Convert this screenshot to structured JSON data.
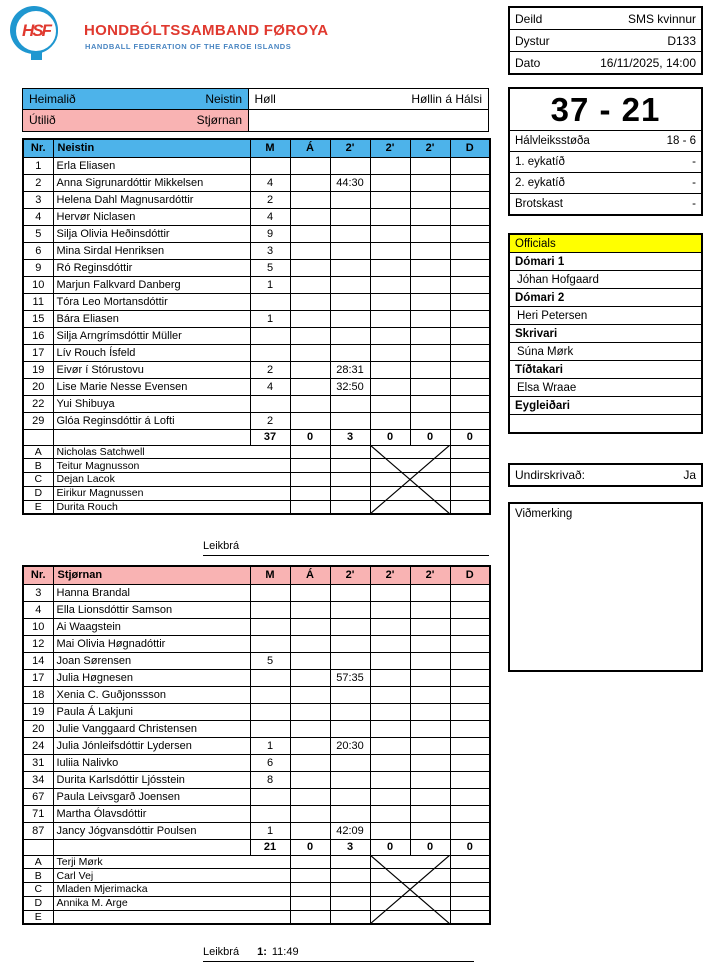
{
  "header": {
    "logo_text": "HSF",
    "org_name": "HONDBÓLTSSAMBAND FØROYA",
    "org_subtitle": "HANDBALL FEDERATION OF THE FAROE ISLANDS"
  },
  "match_info": {
    "rows": [
      {
        "label": "Deild",
        "value": "SMS kvinnur"
      },
      {
        "label": "Dystur",
        "value": "D133"
      },
      {
        "label": "Dato",
        "value": "16/11/2025, 14:00"
      }
    ]
  },
  "venue": {
    "home_label": "Heimalið",
    "home_team": "Neistin",
    "hall_label": "Høll",
    "hall_value": "Høllin á Hálsi",
    "away_label": "Útilið",
    "away_team": "Stjørnan"
  },
  "score": {
    "final": "37 - 21",
    "rows": [
      {
        "label": "Hálvleiksstøða",
        "value": "18 - 6"
      },
      {
        "label": "1. eykatíð",
        "value": "-"
      },
      {
        "label": "2. eykatíð",
        "value": "-"
      },
      {
        "label": "Brotskast",
        "value": "-"
      }
    ]
  },
  "officials": {
    "title": "Officials",
    "list": [
      {
        "role": "Dómari 1",
        "name": "Jóhan Hofgaard"
      },
      {
        "role": "Dómari 2",
        "name": "Heri Petersen"
      },
      {
        "role": "Skrivari",
        "name": "Súna Mørk"
      },
      {
        "role": "Tíðtakari",
        "name": "Elsa Wraae"
      },
      {
        "role": "Eygleiðari",
        "name": ""
      }
    ]
  },
  "signed": {
    "label": "Undirskrivað:",
    "value": "Ja"
  },
  "remark": {
    "label": "Viðmerking"
  },
  "home_table": {
    "headers": [
      "Nr.",
      "Neistin",
      "M",
      "Á",
      "2'",
      "2'",
      "2'",
      "D"
    ],
    "players": [
      [
        "1",
        "Erla Eliasen",
        "",
        "",
        "",
        "",
        "",
        ""
      ],
      [
        "2",
        "Anna Sigrunardóttir Mikkelsen",
        "4",
        "",
        "44:30",
        "",
        "",
        ""
      ],
      [
        "3",
        "Helena Dahl Magnusardóttir",
        "2",
        "",
        "",
        "",
        "",
        ""
      ],
      [
        "4",
        "Hervør Niclasen",
        "4",
        "",
        "",
        "",
        "",
        ""
      ],
      [
        "5",
        "Silja Olivia Heðinsdóttir",
        "9",
        "",
        "",
        "",
        "",
        ""
      ],
      [
        "6",
        "Mina Sirdal Henriksen",
        "3",
        "",
        "",
        "",
        "",
        ""
      ],
      [
        "9",
        "Ró Reginsdóttir",
        "5",
        "",
        "",
        "",
        "",
        ""
      ],
      [
        "10",
        "Marjun Falkvard Danberg",
        "1",
        "",
        "",
        "",
        "",
        ""
      ],
      [
        "11",
        "Tóra Leo Mortansdóttir",
        "",
        "",
        "",
        "",
        "",
        ""
      ],
      [
        "15",
        "Bára Eliasen",
        "1",
        "",
        "",
        "",
        "",
        ""
      ],
      [
        "16",
        "Silja Arngrímsdóttir Müller",
        "",
        "",
        "",
        "",
        "",
        ""
      ],
      [
        "17",
        "Lív Rouch Ísfeld",
        "",
        "",
        "",
        "",
        "",
        ""
      ],
      [
        "19",
        "Eivør í Stórustovu",
        "2",
        "",
        "28:31",
        "",
        "",
        ""
      ],
      [
        "20",
        "Lise Marie Nesse Evensen",
        "4",
        "",
        "32:50",
        "",
        "",
        ""
      ],
      [
        "22",
        "Yui Shibuya",
        "",
        "",
        "",
        "",
        "",
        ""
      ],
      [
        "29",
        "Glóa Reginsdóttir á Lofti",
        "2",
        "",
        "",
        "",
        "",
        ""
      ]
    ],
    "totals": [
      "",
      "",
      "37",
      "0",
      "3",
      "0",
      "0",
      "0"
    ],
    "officials": [
      [
        "A",
        "Nicholas Satchwell"
      ],
      [
        "B",
        "Teitur Magnusson"
      ],
      [
        "C",
        "Dejan Lacok"
      ],
      [
        "D",
        "Eirikur Magnussen"
      ],
      [
        "E",
        "Durita Rouch"
      ]
    ]
  },
  "leikbra_home": {
    "label": "Leikbrá"
  },
  "away_table": {
    "headers": [
      "Nr.",
      "Stjørnan",
      "M",
      "Á",
      "2'",
      "2'",
      "2'",
      "D"
    ],
    "players": [
      [
        "3",
        "Hanna Brandal",
        "",
        "",
        "",
        "",
        "",
        ""
      ],
      [
        "4",
        "Ella Lionsdóttir Samson",
        "",
        "",
        "",
        "",
        "",
        ""
      ],
      [
        "10",
        "Ai Waagstein",
        "",
        "",
        "",
        "",
        "",
        ""
      ],
      [
        "12",
        "Mai Olivia Høgnadóttir",
        "",
        "",
        "",
        "",
        "",
        ""
      ],
      [
        "14",
        "Joan Sørensen",
        "5",
        "",
        "",
        "",
        "",
        ""
      ],
      [
        "17",
        "Julia Høgnesen",
        "",
        "",
        "57:35",
        "",
        "",
        ""
      ],
      [
        "18",
        "Xenia C. Guðjonssson",
        "",
        "",
        "",
        "",
        "",
        ""
      ],
      [
        "19",
        "Paula Á Lakjuni",
        "",
        "",
        "",
        "",
        "",
        ""
      ],
      [
        "20",
        "Julie Vanggaard Christensen",
        "",
        "",
        "",
        "",
        "",
        ""
      ],
      [
        "24",
        "Julia Jónleifsdóttir Lydersen",
        "1",
        "",
        "20:30",
        "",
        "",
        ""
      ],
      [
        "31",
        "Iuliia Nalivko",
        "6",
        "",
        "",
        "",
        "",
        ""
      ],
      [
        "34",
        "Durita Karlsdóttir Ljósstein",
        "8",
        "",
        "",
        "",
        "",
        ""
      ],
      [
        "67",
        "Paula Leivsgarð Joensen",
        "",
        "",
        "",
        "",
        "",
        ""
      ],
      [
        "71",
        "Martha Ólavsdóttir",
        "",
        "",
        "",
        "",
        "",
        ""
      ],
      [
        "87",
        "Jancy Jógvansdóttir Poulsen",
        "1",
        "",
        "42:09",
        "",
        "",
        ""
      ]
    ],
    "totals": [
      "",
      "",
      "21",
      "0",
      "3",
      "0",
      "0",
      "0"
    ],
    "officials": [
      [
        "A",
        "Terji Mørk"
      ],
      [
        "B",
        "Carl Vej"
      ],
      [
        "C",
        "Mladen Mjerimacka"
      ],
      [
        "D",
        "Annika M. Arge"
      ],
      [
        "E",
        ""
      ]
    ]
  },
  "leikbra_away": {
    "label": "Leikbrá",
    "num": "1:",
    "time": "11:49"
  },
  "colors": {
    "home_accent": "#4db3ea",
    "away_accent": "#f9b3b3",
    "officials_header": "#ffff00",
    "brand_red": "#e0392f",
    "brand_blue": "#4a86c2"
  }
}
